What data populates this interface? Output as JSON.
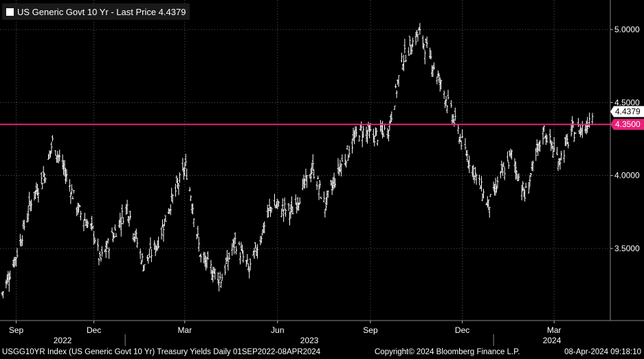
{
  "legend": {
    "label": "US Generic Govt 10 Yr - Last Price 4.4379",
    "color": "#ffffff"
  },
  "footer": {
    "left": "USGG10YR Index (US Generic Govt 10 Yr) Treasury Yields  Daily 01SEP2022-08APR2024",
    "center": "Copyright© 2024 Bloomberg Finance L.P.",
    "right": "08-Apr-2024 09:18:10"
  },
  "colors": {
    "background": "#000000",
    "series": "#ffffff",
    "reference_line": "#e8207a",
    "grid": "#5a5a5a"
  },
  "chart_data": {
    "type": "line",
    "style": "ohlc-bars",
    "ylim": [
      3.05,
      5.1
    ],
    "y_axis_side": "right",
    "y_ticks": [
      "5.0000",
      "4.5000",
      "4.0000",
      "3.5000"
    ],
    "y_tick_values": [
      5.0,
      4.5,
      4.0,
      3.5
    ],
    "x_months": [
      "Sep",
      "Dec",
      "Mar",
      "Jun",
      "Sep",
      "Dec",
      "Mar"
    ],
    "x_years": [
      "2022",
      "2023",
      "2024"
    ],
    "last_price_label": "4.4379",
    "reference_line": {
      "value": 4.35,
      "label": "4.3500"
    },
    "x": [
      "2022-09-01",
      "2022-09-15",
      "2022-09-30",
      "2022-10-14",
      "2022-10-21",
      "2022-11-01",
      "2022-11-15",
      "2022-12-01",
      "2022-12-07",
      "2022-12-20",
      "2023-01-03",
      "2023-01-19",
      "2023-02-01",
      "2023-02-15",
      "2023-03-02",
      "2023-03-09",
      "2023-03-17",
      "2023-04-06",
      "2023-04-20",
      "2023-05-04",
      "2023-05-26",
      "2023-06-15",
      "2023-07-06",
      "2023-07-18",
      "2023-08-01",
      "2023-08-21",
      "2023-09-06",
      "2023-09-19",
      "2023-10-03",
      "2023-10-19",
      "2023-11-01",
      "2023-11-15",
      "2023-12-01",
      "2023-12-27",
      "2024-01-10",
      "2024-01-19",
      "2024-02-01",
      "2024-02-20",
      "2024-03-06",
      "2024-03-19",
      "2024-04-01",
      "2024-04-08"
    ],
    "values": [
      3.19,
      3.45,
      3.83,
      4.02,
      4.23,
      4.05,
      3.77,
      3.61,
      3.41,
      3.59,
      3.79,
      3.39,
      3.52,
      3.81,
      4.06,
      3.79,
      3.43,
      3.29,
      3.55,
      3.35,
      3.8,
      3.75,
      4.05,
      3.79,
      4.05,
      4.31,
      4.27,
      4.32,
      4.8,
      4.98,
      4.78,
      4.53,
      4.22,
      3.79,
      4.02,
      4.14,
      3.86,
      4.31,
      4.1,
      4.3,
      4.33,
      4.44
    ]
  }
}
